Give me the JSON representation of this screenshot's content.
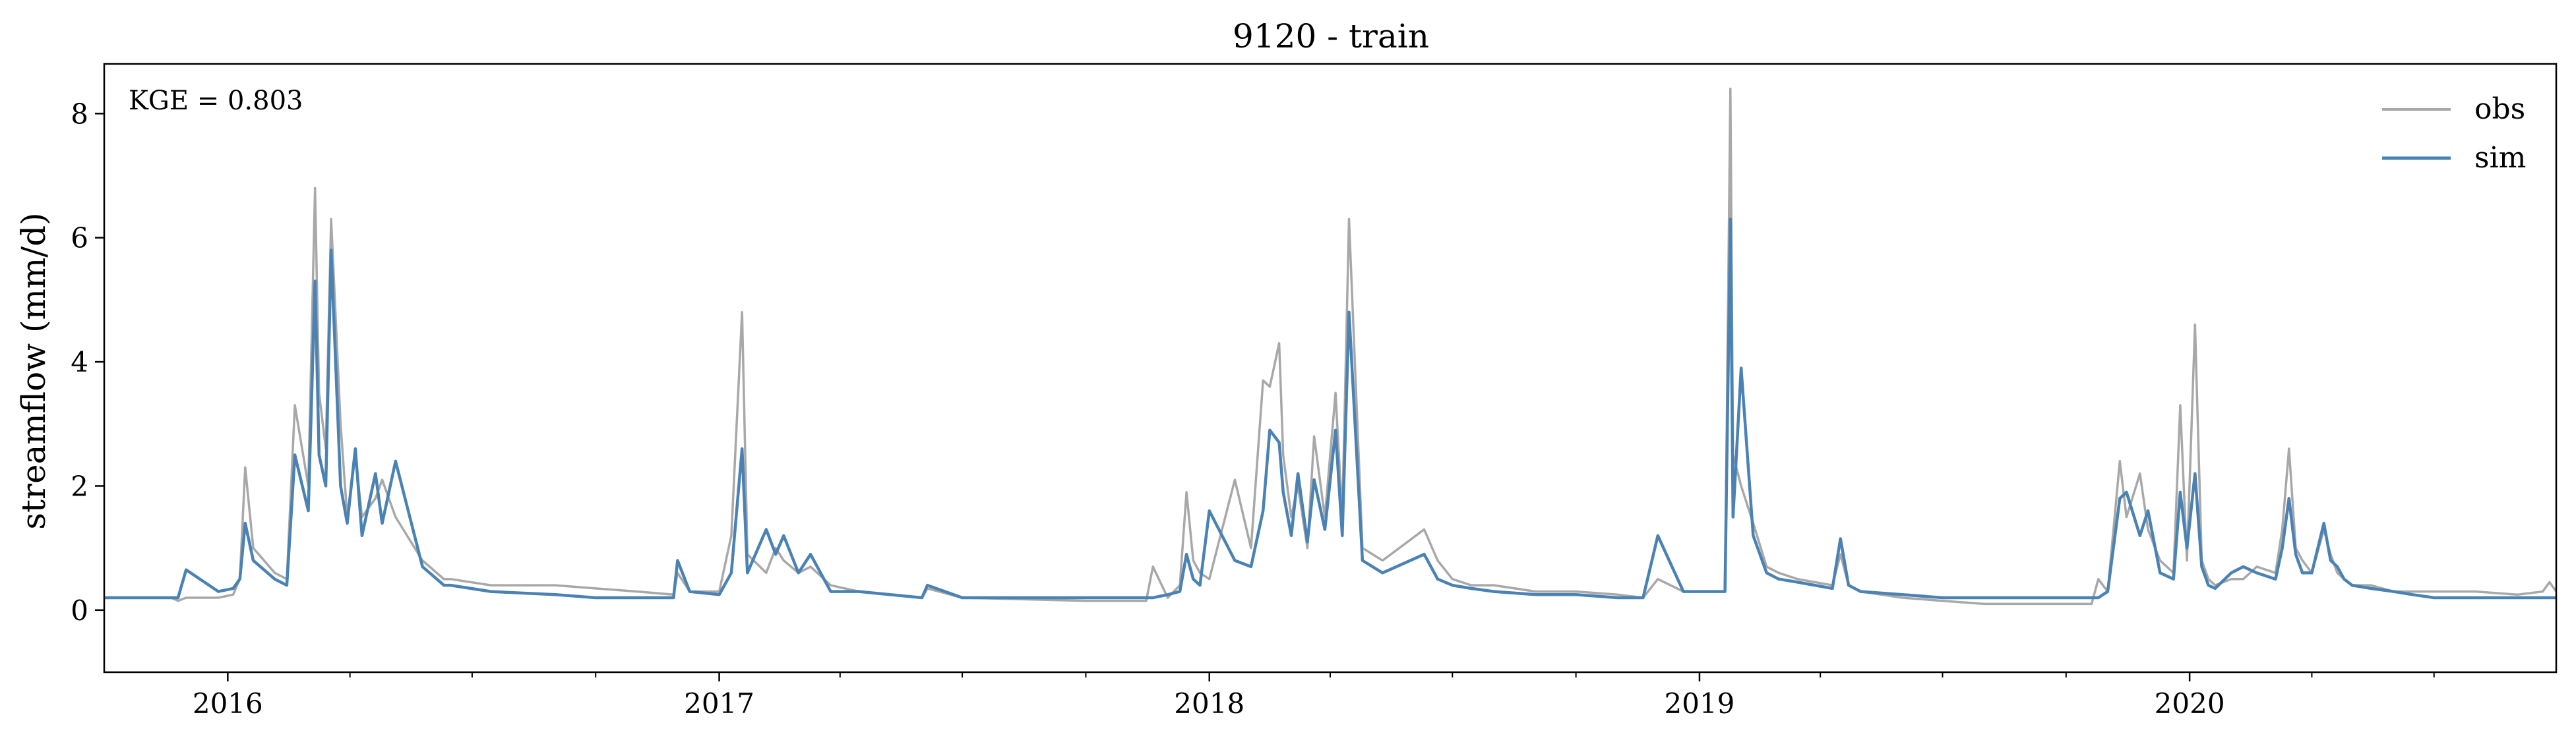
{
  "chart_data": {
    "type": "line",
    "title": "9120 - train",
    "xlabel": "",
    "ylabel": "streamflow (mm/d)",
    "annotation": "KGE = 0.803",
    "xlim": [
      "2015-10-01",
      "2020-09-30"
    ],
    "ylim": [
      -1.0,
      8.8
    ],
    "yticks": [
      0,
      2,
      4,
      6,
      8
    ],
    "ytick_labels": [
      "0",
      "2",
      "4",
      "6",
      "8"
    ],
    "xticks": [
      "2016-01-01",
      "2017-01-01",
      "2018-01-01",
      "2019-01-01",
      "2020-01-01"
    ],
    "xtick_labels": [
      "2016",
      "2017",
      "2018",
      "2019",
      "2020"
    ],
    "legend_position": "top-right",
    "grid": false,
    "colors": {
      "obs": "#a8a8a8",
      "sim": "#4a82b4"
    },
    "series": [
      {
        "name": "obs",
        "x": [
          "2015-10-01",
          "2015-11-20",
          "2015-11-25",
          "2015-12-01",
          "2015-12-25",
          "2016-01-05",
          "2016-01-10",
          "2016-01-14",
          "2016-01-20",
          "2016-02-05",
          "2016-02-14",
          "2016-02-20",
          "2016-03-01",
          "2016-03-06",
          "2016-03-09",
          "2016-03-14",
          "2016-03-18",
          "2016-03-25",
          "2016-03-30",
          "2016-04-05",
          "2016-04-10",
          "2016-04-20",
          "2016-04-25",
          "2016-05-05",
          "2016-05-25",
          "2016-06-10",
          "2016-06-15",
          "2016-07-15",
          "2016-09-01",
          "2016-10-01",
          "2016-11-01",
          "2016-11-28",
          "2016-12-01",
          "2016-12-10",
          "2017-01-01",
          "2017-01-10",
          "2017-01-18",
          "2017-01-22",
          "2017-02-05",
          "2017-02-12",
          "2017-02-18",
          "2017-03-01",
          "2017-03-10",
          "2017-03-25",
          "2017-04-15",
          "2017-06-01",
          "2017-06-05",
          "2017-07-01",
          "2017-10-01",
          "2017-11-15",
          "2017-11-20",
          "2017-12-01",
          "2017-12-10",
          "2017-12-15",
          "2017-12-20",
          "2017-12-25",
          "2018-01-01",
          "2018-01-20",
          "2018-02-01",
          "2018-02-10",
          "2018-02-15",
          "2018-02-22",
          "2018-02-25",
          "2018-03-03",
          "2018-03-08",
          "2018-03-15",
          "2018-03-20",
          "2018-03-28",
          "2018-04-05",
          "2018-04-10",
          "2018-04-15",
          "2018-04-25",
          "2018-05-10",
          "2018-06-10",
          "2018-06-20",
          "2018-07-01",
          "2018-07-15",
          "2018-08-01",
          "2018-09-01",
          "2018-10-01",
          "2018-11-01",
          "2018-11-20",
          "2018-12-01",
          "2018-12-20",
          "2019-01-20",
          "2019-01-24",
          "2019-01-26",
          "2019-02-01",
          "2019-02-10",
          "2019-02-20",
          "2019-03-01",
          "2019-03-15",
          "2019-04-10",
          "2019-04-16",
          "2019-04-22",
          "2019-05-01",
          "2019-06-01",
          "2019-07-01",
          "2019-08-01",
          "2019-10-01",
          "2019-10-20",
          "2019-10-25",
          "2019-11-01",
          "2019-11-10",
          "2019-11-15",
          "2019-11-25",
          "2019-12-01",
          "2019-12-10",
          "2019-12-20",
          "2019-12-25",
          "2019-12-30",
          "2020-01-05",
          "2020-01-10",
          "2020-01-15",
          "2020-01-20",
          "2020-02-01",
          "2020-02-10",
          "2020-02-20",
          "2020-03-05",
          "2020-03-10",
          "2020-03-15",
          "2020-03-20",
          "2020-03-25",
          "2020-04-01",
          "2020-04-10",
          "2020-04-15",
          "2020-04-20",
          "2020-04-25",
          "2020-05-01",
          "2020-05-15",
          "2020-06-01",
          "2020-06-15",
          "2020-07-01",
          "2020-08-01",
          "2020-09-01",
          "2020-09-20",
          "2020-09-25",
          "2020-09-30"
        ],
        "values": [
          0.2,
          0.2,
          0.15,
          0.2,
          0.2,
          0.25,
          0.5,
          2.3,
          1.0,
          0.6,
          0.5,
          3.3,
          2.0,
          6.8,
          3.5,
          2.6,
          6.3,
          3.0,
          1.5,
          2.5,
          1.5,
          1.8,
          2.1,
          1.5,
          0.8,
          0.5,
          0.5,
          0.4,
          0.4,
          0.35,
          0.3,
          0.25,
          0.6,
          0.3,
          0.3,
          1.2,
          4.8,
          0.9,
          0.6,
          1.0,
          0.8,
          0.6,
          0.7,
          0.4,
          0.3,
          0.2,
          0.35,
          0.2,
          0.15,
          0.15,
          0.7,
          0.2,
          0.4,
          1.9,
          0.8,
          0.6,
          0.5,
          2.1,
          1.0,
          3.7,
          3.6,
          4.3,
          2.5,
          1.5,
          2.0,
          1.0,
          2.8,
          1.5,
          3.5,
          1.5,
          6.3,
          1.0,
          0.8,
          1.3,
          0.8,
          0.5,
          0.4,
          0.4,
          0.3,
          0.3,
          0.25,
          0.2,
          0.5,
          0.3,
          0.3,
          8.4,
          2.5,
          2.0,
          1.4,
          0.7,
          0.6,
          0.5,
          0.4,
          0.9,
          0.4,
          0.3,
          0.2,
          0.15,
          0.1,
          0.1,
          0.1,
          0.5,
          0.3,
          2.4,
          1.5,
          2.2,
          1.3,
          0.8,
          0.6,
          3.3,
          0.8,
          4.6,
          0.8,
          0.5,
          0.4,
          0.5,
          0.5,
          0.7,
          0.6,
          1.3,
          2.6,
          1.0,
          0.8,
          0.6,
          1.3,
          0.9,
          0.6,
          0.5,
          0.4,
          0.4,
          0.3,
          0.3,
          0.3,
          0.3,
          0.25,
          0.3,
          0.45,
          0.3
        ]
      },
      {
        "name": "sim",
        "x": [
          "2015-10-01",
          "2015-11-20",
          "2015-11-25",
          "2015-12-01",
          "2015-12-25",
          "2016-01-05",
          "2016-01-10",
          "2016-01-14",
          "2016-01-20",
          "2016-02-05",
          "2016-02-14",
          "2016-02-20",
          "2016-03-01",
          "2016-03-06",
          "2016-03-09",
          "2016-03-14",
          "2016-03-18",
          "2016-03-25",
          "2016-03-30",
          "2016-04-05",
          "2016-04-10",
          "2016-04-20",
          "2016-04-25",
          "2016-05-05",
          "2016-05-25",
          "2016-06-10",
          "2016-06-15",
          "2016-07-15",
          "2016-09-01",
          "2016-10-01",
          "2016-11-01",
          "2016-11-28",
          "2016-12-01",
          "2016-12-10",
          "2017-01-01",
          "2017-01-10",
          "2017-01-18",
          "2017-01-22",
          "2017-02-05",
          "2017-02-12",
          "2017-02-18",
          "2017-03-01",
          "2017-03-10",
          "2017-03-25",
          "2017-04-15",
          "2017-06-01",
          "2017-06-05",
          "2017-07-01",
          "2017-10-01",
          "2017-11-15",
          "2017-11-20",
          "2017-12-01",
          "2017-12-10",
          "2017-12-15",
          "2017-12-20",
          "2017-12-25",
          "2018-01-01",
          "2018-01-20",
          "2018-02-01",
          "2018-02-10",
          "2018-02-15",
          "2018-02-22",
          "2018-02-25",
          "2018-03-03",
          "2018-03-08",
          "2018-03-15",
          "2018-03-20",
          "2018-03-28",
          "2018-04-05",
          "2018-04-10",
          "2018-04-15",
          "2018-04-25",
          "2018-05-10",
          "2018-06-10",
          "2018-06-20",
          "2018-07-01",
          "2018-07-15",
          "2018-08-01",
          "2018-09-01",
          "2018-10-01",
          "2018-11-01",
          "2018-11-20",
          "2018-12-01",
          "2018-12-20",
          "2019-01-20",
          "2019-01-24",
          "2019-01-26",
          "2019-02-01",
          "2019-02-10",
          "2019-02-20",
          "2019-03-01",
          "2019-03-15",
          "2019-04-10",
          "2019-04-16",
          "2019-04-22",
          "2019-05-01",
          "2019-06-01",
          "2019-07-01",
          "2019-08-01",
          "2019-10-01",
          "2019-10-20",
          "2019-10-25",
          "2019-11-01",
          "2019-11-10",
          "2019-11-15",
          "2019-11-25",
          "2019-12-01",
          "2019-12-10",
          "2019-12-20",
          "2019-12-25",
          "2019-12-30",
          "2020-01-05",
          "2020-01-10",
          "2020-01-15",
          "2020-01-20",
          "2020-02-01",
          "2020-02-10",
          "2020-02-20",
          "2020-03-05",
          "2020-03-10",
          "2020-03-15",
          "2020-03-20",
          "2020-03-25",
          "2020-04-01",
          "2020-04-10",
          "2020-04-15",
          "2020-04-20",
          "2020-04-25",
          "2020-05-01",
          "2020-05-15",
          "2020-06-01",
          "2020-06-15",
          "2020-07-01",
          "2020-08-01",
          "2020-09-01",
          "2020-09-20",
          "2020-09-25",
          "2020-09-30"
        ],
        "values": [
          0.2,
          0.2,
          0.2,
          0.65,
          0.3,
          0.35,
          0.5,
          1.4,
          0.8,
          0.5,
          0.4,
          2.5,
          1.6,
          5.3,
          2.5,
          2.0,
          5.8,
          2.0,
          1.4,
          2.6,
          1.2,
          2.2,
          1.4,
          2.4,
          0.7,
          0.4,
          0.4,
          0.3,
          0.25,
          0.2,
          0.2,
          0.2,
          0.8,
          0.3,
          0.25,
          0.6,
          2.6,
          0.6,
          1.3,
          0.9,
          1.2,
          0.6,
          0.9,
          0.3,
          0.3,
          0.2,
          0.4,
          0.2,
          0.2,
          0.2,
          0.2,
          0.25,
          0.3,
          0.9,
          0.5,
          0.4,
          1.6,
          0.8,
          0.7,
          1.6,
          2.9,
          2.7,
          1.9,
          1.2,
          2.2,
          1.1,
          2.1,
          1.3,
          2.9,
          1.2,
          4.8,
          0.8,
          0.6,
          0.9,
          0.5,
          0.4,
          0.35,
          0.3,
          0.25,
          0.25,
          0.2,
          0.2,
          1.2,
          0.3,
          0.3,
          6.3,
          1.5,
          3.9,
          1.2,
          0.6,
          0.5,
          0.45,
          0.35,
          1.15,
          0.4,
          0.3,
          0.25,
          0.2,
          0.2,
          0.2,
          0.2,
          0.2,
          0.3,
          1.8,
          1.9,
          1.2,
          1.6,
          0.6,
          0.5,
          1.9,
          1.0,
          2.2,
          0.7,
          0.4,
          0.35,
          0.6,
          0.7,
          0.6,
          0.5,
          1.0,
          1.8,
          0.9,
          0.6,
          0.6,
          1.4,
          0.8,
          0.7,
          0.5,
          0.4,
          0.35,
          0.3,
          0.25,
          0.2,
          0.2,
          0.2,
          0.2,
          0.2,
          0.2
        ]
      }
    ]
  }
}
